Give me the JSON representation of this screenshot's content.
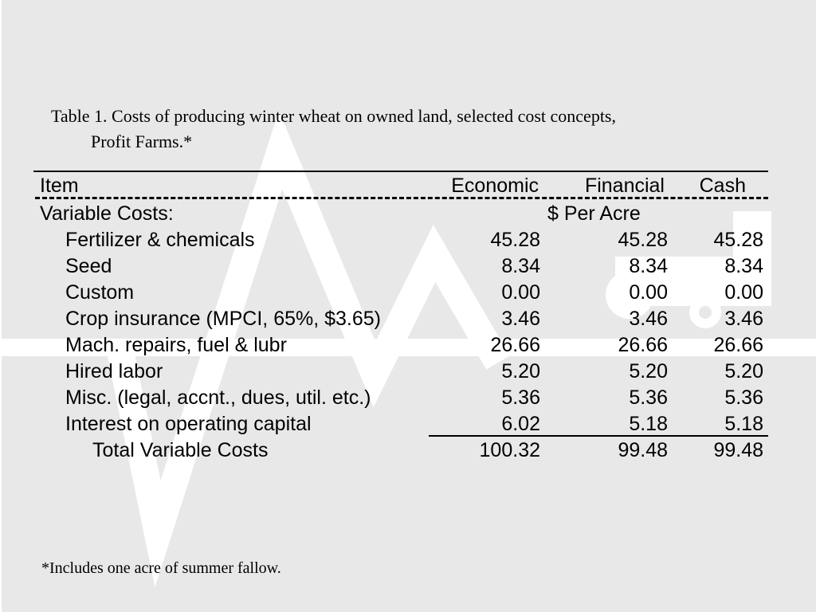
{
  "caption": {
    "line1": "Table 1.  Costs of producing winter wheat on owned land, selected cost concepts,",
    "line2": "Profit Farms.*"
  },
  "table": {
    "headers": {
      "item": "Item",
      "economic": "Economic",
      "financial": "Financial",
      "cash": "Cash"
    },
    "section_label": "Variable Costs:",
    "unit_label": "$ Per Acre",
    "rows": [
      {
        "item": "Fertilizer & chemicals",
        "economic": "45.28",
        "financial": "45.28",
        "cash": "45.28"
      },
      {
        "item": "Seed",
        "economic": "8.34",
        "financial": "8.34",
        "cash": "8.34"
      },
      {
        "item": "Custom",
        "economic": "0.00",
        "financial": "0.00",
        "cash": "0.00"
      },
      {
        "item": "Crop insurance (MPCI, 65%, $3.65)",
        "economic": "3.46",
        "financial": "3.46",
        "cash": "3.46"
      },
      {
        "item": "Mach. repairs, fuel & lubr",
        "economic": "26.66",
        "financial": "26.66",
        "cash": "26.66"
      },
      {
        "item": "Hired labor",
        "economic": "5.20",
        "financial": "5.20",
        "cash": "5.20"
      },
      {
        "item": "Misc. (legal, accnt., dues, util. etc.)",
        "economic": "5.36",
        "financial": "5.36",
        "cash": "5.36"
      },
      {
        "item": "Interest on operating capital",
        "economic": "6.02",
        "financial": "5.18",
        "cash": "5.18"
      }
    ],
    "total": {
      "item": "Total Variable Costs",
      "economic": "100.32",
      "financial": "99.48",
      "cash": "99.48"
    }
  },
  "footnote": "*Includes one acre of summer fallow.",
  "colors": {
    "background": "#e8e8e8",
    "watermark": "#ffffff",
    "text": "#000000"
  }
}
